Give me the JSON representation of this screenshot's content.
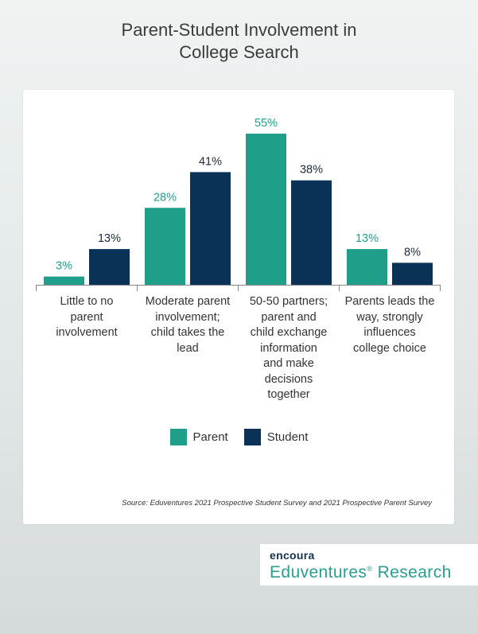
{
  "page": {
    "title_line1": "Parent-Student Involvement in",
    "title_line2": "College Search",
    "source": "Source: Eduventures 2021 Prospective Student Survey and 2021 Prospective Parent Survey"
  },
  "brand": {
    "top": "encoura",
    "bottom": "Eduventures",
    "reg": "®",
    "bottom_rest": " Research"
  },
  "colors": {
    "parent": "#1f9e8a",
    "student": "#0a3256",
    "parent_label": "#1f9e8a",
    "student_label": "#1a2a3a"
  },
  "chart_data": {
    "type": "bar",
    "categories": [
      [
        "Little to no",
        "parent",
        "involvement"
      ],
      [
        "Moderate parent",
        "involvement;",
        "child takes the",
        "lead"
      ],
      [
        "50-50 partners;",
        "parent and",
        "child exchange",
        "information",
        "and make",
        "decisions",
        "together"
      ],
      [
        "Parents leads the",
        "way, strongly",
        "influences",
        "college choice"
      ]
    ],
    "series": [
      {
        "name": "Parent",
        "values": [
          3,
          28,
          55,
          13
        ],
        "labels": [
          "3%",
          "28%",
          "55%",
          "13%"
        ]
      },
      {
        "name": "Student",
        "values": [
          13,
          41,
          38,
          8
        ],
        "labels": [
          "13%",
          "41%",
          "38%",
          "8%"
        ]
      }
    ],
    "ylim": [
      0,
      55
    ],
    "grid": false,
    "legend": "bottom-center"
  }
}
